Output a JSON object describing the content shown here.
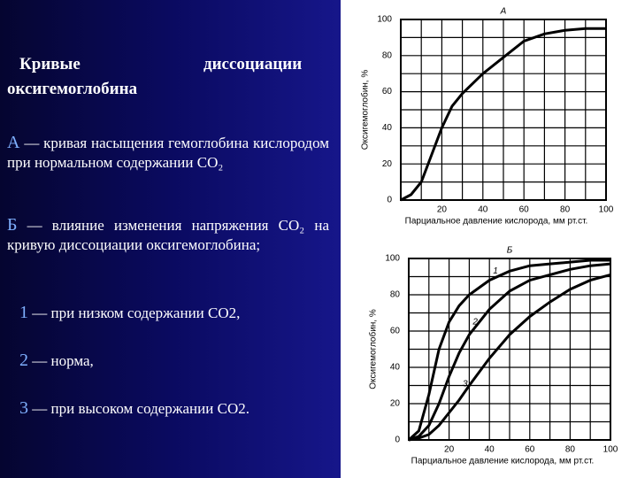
{
  "slide": {
    "title_1": "Кривые",
    "title_2": "диссоциации",
    "title_3": "оксигемоглобина",
    "items": [
      {
        "marker": "А",
        "text": "— кривая насыщения гемоглобина кислородом при нормальном содержании CO₂"
      },
      {
        "marker": "Б",
        "text": "— влияние изменения напряжения CO₂ на кривую диссоциации оксигемоглобина;"
      },
      {
        "marker": "1",
        "text": "— при низком содержании CO2,"
      },
      {
        "marker": "2",
        "text": "— норма,"
      },
      {
        "marker": "3",
        "text": "— при высоком содержании CO2."
      }
    ]
  },
  "chart_data": [
    {
      "type": "line",
      "title": "А",
      "ylabel": "Оксигемоглобин, %",
      "xlabel": "Парциальное давление кислорода, мм рт.ст.",
      "x": [
        0,
        5,
        10,
        15,
        20,
        25,
        30,
        40,
        50,
        60,
        70,
        80,
        90,
        100
      ],
      "series": [
        {
          "name": null,
          "color": "#000000",
          "values": [
            0,
            3,
            10,
            25,
            40,
            52,
            59,
            70,
            79,
            88,
            92,
            94,
            95,
            95
          ]
        }
      ],
      "xlim": [
        0,
        100
      ],
      "ylim": [
        0,
        100
      ],
      "xticks": [
        20,
        40,
        60,
        80,
        100
      ],
      "yticks": [
        0,
        20,
        40,
        60,
        80,
        100
      ],
      "grid": true,
      "grid_lines": [
        10,
        20,
        30,
        40,
        50,
        60,
        70,
        80,
        90
      ]
    },
    {
      "type": "line",
      "title": "Б",
      "ylabel": "Оксигемоглобин, %",
      "xlabel": "Парциальное давление кислорода, мм рт.ст.",
      "x": [
        0,
        5,
        10,
        15,
        20,
        25,
        30,
        40,
        50,
        60,
        70,
        80,
        90,
        100
      ],
      "series": [
        {
          "name": "1",
          "color": "#000000",
          "values": [
            0,
            5,
            25,
            50,
            65,
            74,
            80,
            88,
            93,
            96,
            97,
            98,
            99,
            99
          ]
        },
        {
          "name": "2",
          "color": "#000000",
          "values": [
            0,
            2,
            8,
            20,
            35,
            48,
            58,
            72,
            82,
            88,
            91,
            94,
            96,
            97
          ]
        },
        {
          "name": "3",
          "color": "#000000",
          "values": [
            0,
            1,
            3,
            8,
            15,
            22,
            30,
            45,
            58,
            68,
            76,
            83,
            88,
            91
          ]
        }
      ],
      "xlim": [
        0,
        100
      ],
      "ylim": [
        0,
        100
      ],
      "xticks": [
        20,
        40,
        60,
        80,
        100
      ],
      "yticks": [
        0,
        20,
        40,
        60,
        80,
        100
      ],
      "grid": true,
      "grid_lines": [
        10,
        20,
        30,
        40,
        50,
        60,
        70,
        80,
        90
      ]
    }
  ]
}
